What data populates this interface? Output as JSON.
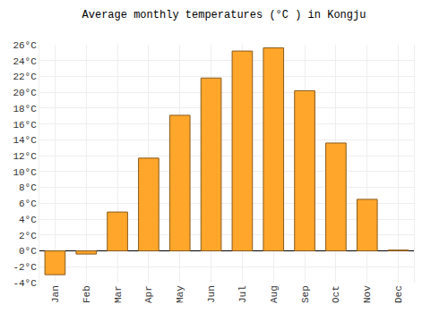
{
  "chart_data": {
    "type": "bar",
    "title": "Average monthly temperatures (°C ) in Kongju",
    "categories": [
      "Jan",
      "Feb",
      "Mar",
      "Apr",
      "May",
      "Jun",
      "Jul",
      "Aug",
      "Sep",
      "Oct",
      "Nov",
      "Dec"
    ],
    "values": [
      -3.0,
      -0.4,
      4.9,
      11.7,
      17.1,
      21.8,
      25.2,
      25.6,
      20.2,
      13.6,
      6.5,
      0.1
    ],
    "color": "#ffa62b",
    "ylim": [
      -4,
      26
    ],
    "yticks": [
      {
        "value": -4,
        "label": "-4°C"
      },
      {
        "value": -2,
        "label": "-2°C"
      },
      {
        "value": 0,
        "label": "0°C"
      },
      {
        "value": 2,
        "label": "2°C"
      },
      {
        "value": 4,
        "label": "4°C"
      },
      {
        "value": 6,
        "label": "6°C"
      },
      {
        "value": 8,
        "label": "8°C"
      },
      {
        "value": 10,
        "label": "10°C"
      },
      {
        "value": 12,
        "label": "12°C"
      },
      {
        "value": 14,
        "label": "14°C"
      },
      {
        "value": 16,
        "label": "16°C"
      },
      {
        "value": 18,
        "label": "18°C"
      },
      {
        "value": 20,
        "label": "20°C"
      },
      {
        "value": 22,
        "label": "22°C"
      },
      {
        "value": 24,
        "label": "24°C"
      },
      {
        "value": 26,
        "label": "26°C"
      }
    ],
    "grid": true
  }
}
